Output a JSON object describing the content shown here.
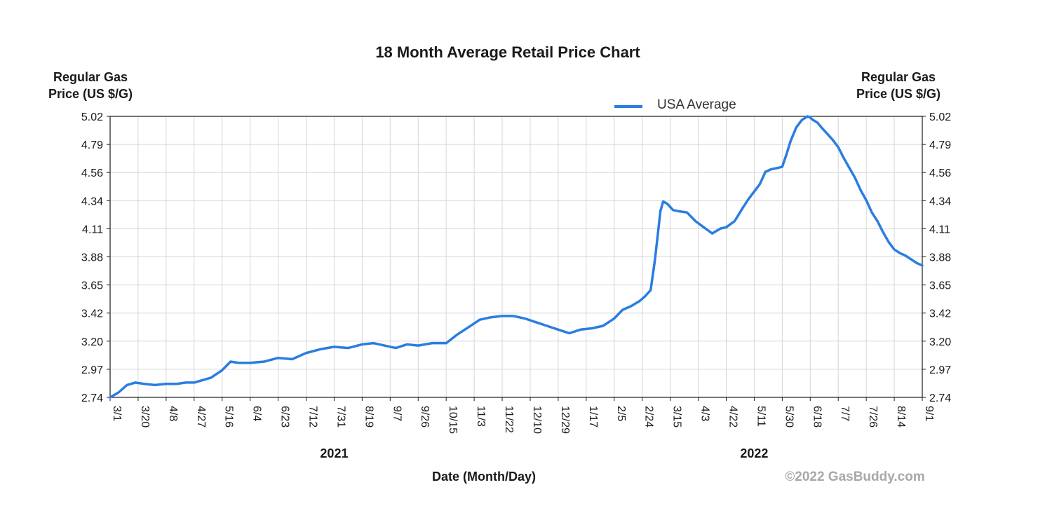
{
  "chart_data": {
    "type": "line",
    "title": "18 Month Average Retail Price Chart",
    "ylabel_left": [
      "Regular Gas",
      "Price (US $/G)"
    ],
    "ylabel_right": [
      "Regular Gas",
      "Price (US $/G)"
    ],
    "xlabel": "Date (Month/Day)",
    "ylim": [
      2.74,
      5.02
    ],
    "yticks": [
      "5.02",
      "4.79",
      "4.56",
      "4.34",
      "4.11",
      "3.88",
      "3.65",
      "3.42",
      "3.20",
      "2.97",
      "2.74"
    ],
    "xticks": [
      "3/1",
      "3/20",
      "4/8",
      "4/27",
      "5/16",
      "6/4",
      "6/23",
      "7/12",
      "7/31",
      "8/19",
      "9/7",
      "9/26",
      "10/15",
      "11/3",
      "11/22",
      "12/10",
      "12/29",
      "1/17",
      "2/5",
      "2/24",
      "3/15",
      "4/3",
      "4/22",
      "5/11",
      "5/30",
      "6/18",
      "7/7",
      "7/26",
      "8/14",
      "9/1"
    ],
    "year_labels": [
      {
        "label": "2021",
        "at_tick": "7/31"
      },
      {
        "label": "2022",
        "at_tick": "5/11"
      }
    ],
    "grid": true,
    "legend": {
      "position": "top-right",
      "entries": [
        "USA Average"
      ]
    },
    "series": [
      {
        "name": "USA Average",
        "color": "#2a7de1",
        "x_tick_index": [
          0,
          0.3,
          0.6,
          0.9,
          1.2,
          1.6,
          2.0,
          2.4,
          2.7,
          3.0,
          3.3,
          3.6,
          4.0,
          4.3,
          4.6,
          5.0,
          5.5,
          6.0,
          6.5,
          7.0,
          7.5,
          8.0,
          8.5,
          9.0,
          9.4,
          9.8,
          10.2,
          10.6,
          11.0,
          11.5,
          12.0,
          12.4,
          12.8,
          13.2,
          13.6,
          14.0,
          14.4,
          14.8,
          15.2,
          15.6,
          16.0,
          16.4,
          16.8,
          17.2,
          17.6,
          18.0,
          18.3,
          18.6,
          18.9,
          19.1,
          19.3,
          19.45,
          19.55,
          19.65,
          19.75,
          19.9,
          20.1,
          20.3,
          20.6,
          20.9,
          21.2,
          21.5,
          21.8,
          22.0,
          22.3,
          22.6,
          22.8,
          23.0,
          23.2,
          23.4,
          23.6,
          23.8,
          24.0,
          24.15,
          24.3,
          24.5,
          24.7,
          24.9,
          25.0,
          25.1,
          25.25,
          25.4,
          25.6,
          25.8,
          26.0,
          26.2,
          26.4,
          26.6,
          26.8,
          27.0,
          27.2,
          27.4,
          27.6,
          27.8,
          28.0,
          28.2,
          28.4,
          28.6,
          28.8,
          29.0
        ],
        "values": [
          2.74,
          2.78,
          2.84,
          2.86,
          2.85,
          2.84,
          2.85,
          2.85,
          2.86,
          2.86,
          2.88,
          2.9,
          2.96,
          3.03,
          3.02,
          3.02,
          3.03,
          3.06,
          3.05,
          3.1,
          3.13,
          3.15,
          3.14,
          3.17,
          3.18,
          3.16,
          3.14,
          3.17,
          3.16,
          3.18,
          3.18,
          3.25,
          3.31,
          3.37,
          3.39,
          3.4,
          3.4,
          3.38,
          3.35,
          3.32,
          3.29,
          3.26,
          3.29,
          3.3,
          3.32,
          3.38,
          3.45,
          3.48,
          3.52,
          3.56,
          3.61,
          3.85,
          4.05,
          4.25,
          4.33,
          4.31,
          4.26,
          4.25,
          4.24,
          4.17,
          4.12,
          4.07,
          4.11,
          4.12,
          4.17,
          4.28,
          4.35,
          4.41,
          4.47,
          4.57,
          4.59,
          4.6,
          4.61,
          4.71,
          4.82,
          4.93,
          4.99,
          5.02,
          5.01,
          4.99,
          4.97,
          4.93,
          4.88,
          4.83,
          4.77,
          4.68,
          4.6,
          4.52,
          4.42,
          4.34,
          4.24,
          4.17,
          4.08,
          4.0,
          3.94,
          3.91,
          3.89,
          3.86,
          3.83,
          3.81
        ]
      }
    ]
  },
  "credit": "©2022 GasBuddy.com"
}
